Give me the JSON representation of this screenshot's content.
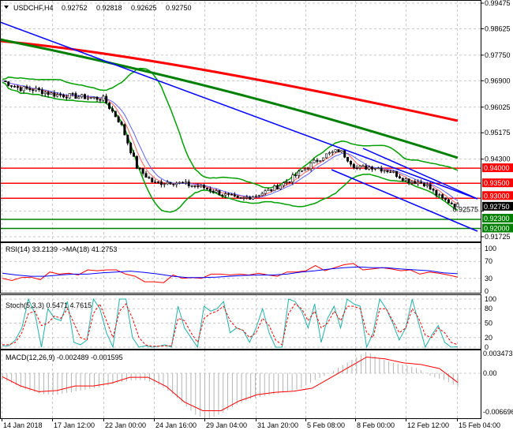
{
  "header": {
    "symbol": "USDCHF,H4",
    "open": "0.92752",
    "high": "0.92818",
    "low": "0.92625",
    "close": "0.92750"
  },
  "chart_data": [
    {
      "type": "candlestick",
      "title": "USDCHF,H4 0.92752 0.92818 0.92625 0.92750",
      "y_ticks": [
        "0.99475",
        "0.98625",
        "0.97750",
        "0.96900",
        "0.96025",
        "0.95175",
        "0.94300",
        "0.92575",
        "0.91725"
      ],
      "ylim": [
        0.91725,
        0.99475
      ],
      "x_ticks": [
        "14 Jan 2018",
        "17 Jan 12:00",
        "22 Jan 00:00",
        "24 Jan 16:00",
        "29 Jan 04:00",
        "31 Jan 20:00",
        "5 Feb 08:00",
        "8 Feb 00:00",
        "12 Feb 12:00",
        "15 Feb 04:00"
      ],
      "close_path": [
        0.969,
        0.9665,
        0.966,
        0.9645,
        0.964,
        0.9635,
        0.963,
        0.955,
        0.94,
        0.935,
        0.9355,
        0.9345,
        0.9335,
        0.9315,
        0.9295,
        0.931,
        0.933,
        0.936,
        0.94,
        0.944,
        0.946,
        0.94,
        0.9405,
        0.939,
        0.936,
        0.935,
        0.93,
        0.9275
      ],
      "levels": [
        {
          "value": "0.94000",
          "color": "#ff0000"
        },
        {
          "value": "0.93500",
          "color": "#ff0000"
        },
        {
          "value": "0.93000",
          "color": "#ff0000"
        },
        {
          "value": "0.92750",
          "color": "#000000"
        },
        {
          "value": "0.92300",
          "color": "#008000"
        },
        {
          "value": "0.92000",
          "color": "#008000"
        }
      ],
      "colors": {
        "trendline": "#0000ff",
        "ma_slow": "#ff0000",
        "ma_mid": "#008000",
        "bollinger": "#00a000"
      },
      "grid": true
    },
    {
      "type": "line",
      "title": "RSI(14) 33.2139  ->MA(18) 41.2753",
      "ylim": [
        0,
        100
      ],
      "y_ticks": [
        "100",
        "70",
        "30",
        "0"
      ],
      "series": [
        {
          "color": "#ff0000",
          "values": [
            30,
            25,
            32,
            33,
            27,
            45,
            40,
            42,
            38,
            50,
            48,
            50,
            50,
            40,
            35,
            22,
            22,
            20,
            38,
            30,
            32,
            30,
            40,
            40,
            38,
            40,
            38,
            42,
            38,
            35,
            45,
            45,
            48,
            60,
            48,
            55,
            62,
            65,
            50,
            52,
            55,
            52,
            48,
            50,
            40,
            45,
            42,
            38,
            33
          ]
        },
        {
          "color": "#0000ff",
          "values": [
            42,
            38,
            35,
            35,
            38,
            40,
            40,
            43,
            45,
            47,
            44,
            40,
            35,
            32,
            32,
            33,
            35,
            37,
            38,
            38,
            40,
            45,
            48,
            52,
            55,
            57,
            55,
            55,
            52,
            50,
            48,
            43,
            41
          ]
        }
      ]
    },
    {
      "type": "line",
      "title": "Stoch(5,3,3) 0.5471 4.7615",
      "ylim": [
        0,
        100
      ],
      "y_ticks": [
        "100",
        "80",
        "50",
        "20",
        "0"
      ],
      "series": [
        {
          "color": "#20b2aa",
          "values": [
            3,
            3,
            15,
            40,
            100,
            70,
            0,
            80,
            60,
            55,
            95,
            10,
            5,
            15,
            100,
            80,
            30,
            0,
            100,
            100,
            20,
            0,
            3,
            0,
            2,
            5,
            0,
            85,
            40,
            20,
            0,
            85,
            75,
            80,
            95,
            30,
            40,
            35,
            10,
            40,
            80,
            30,
            0,
            0,
            100,
            95,
            75,
            40,
            90,
            10,
            60,
            85,
            40,
            100,
            90,
            85,
            0,
            30,
            100,
            80,
            50,
            15,
            40,
            100,
            50,
            0,
            25,
            45,
            10,
            0,
            1
          ]
        },
        {
          "color": "#ff0000",
          "values": [
            5,
            5,
            10,
            30,
            70,
            75,
            45,
            50,
            65,
            60,
            80,
            50,
            20,
            15,
            70,
            90,
            55,
            20,
            75,
            90,
            60,
            20,
            5,
            2,
            2,
            3,
            3,
            60,
            55,
            30,
            10,
            60,
            70,
            75,
            85,
            55,
            40,
            35,
            20,
            30,
            60,
            45,
            15,
            5,
            70,
            90,
            80,
            55,
            75,
            40,
            50,
            75,
            55,
            85,
            85,
            80,
            30,
            20,
            80,
            80,
            55,
            30,
            40,
            80,
            60,
            25,
            20,
            40,
            30,
            10,
            5
          ]
        }
      ]
    },
    {
      "type": "line",
      "title": "MACD(12,26,9) -0.002489 -0.001595",
      "y_ticks": [
        "0.003473",
        "0.00",
        "-0.006696"
      ],
      "series": [
        {
          "name": "histogram",
          "color": "#b4b4b4",
          "values": [
            -0.001,
            -0.002,
            -0.003,
            -0.0036,
            -0.0038,
            -0.0034,
            -0.003,
            -0.0026,
            -0.0022,
            -0.0016,
            -0.0012,
            -0.0012,
            -0.002,
            -0.0034,
            -0.0055,
            -0.0075,
            -0.0078,
            -0.0068,
            -0.0055,
            -0.0045,
            -0.004,
            -0.0036,
            -0.0032,
            -0.0026,
            -0.0012,
            -0.0002,
            0.0012,
            0.0025,
            0.0038,
            0.0026,
            0.0018,
            0.0014,
            0.0008,
            -0.0006,
            -0.0012,
            -0.0024
          ]
        },
        {
          "name": "signal",
          "color": "#ff0000",
          "values": [
            -0.0006,
            -0.0022,
            -0.0032,
            -0.003,
            -0.0022,
            -0.0022,
            -0.0017,
            -0.0007,
            -0.0007,
            -0.0023,
            -0.005,
            -0.0065,
            -0.0065,
            -0.0048,
            -0.0037,
            -0.0033,
            -0.0031,
            -0.0026,
            -0.0008,
            0.001,
            0.0028,
            0.0025,
            0.0018,
            0.0015,
            0.0008,
            -0.0016
          ]
        }
      ]
    }
  ]
}
